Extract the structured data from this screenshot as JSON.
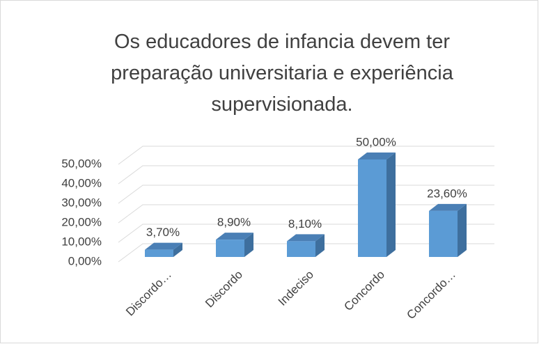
{
  "chart_data": {
    "type": "bar3d",
    "title": "Os educadores de infancia devem ter preparação universitaria e experiência supervisionada.",
    "categories": [
      "Discordo…",
      "Discordo",
      "Indeciso",
      "Concordo",
      "Concordo…"
    ],
    "values": [
      3.7,
      8.9,
      8.1,
      50,
      23.6
    ],
    "value_labels": [
      "3,70%",
      "8,90%",
      "8,10%",
      "50,00%",
      "23,60%"
    ],
    "color": "#5b9bd5",
    "ylim": [
      0,
      50
    ],
    "yticks": [
      {
        "value": 0,
        "label": "0,00%"
      },
      {
        "value": 10,
        "label": "10,00%"
      },
      {
        "value": 20,
        "label": "20,00%"
      },
      {
        "value": 30,
        "label": "30,00%"
      },
      {
        "value": 40,
        "label": "40,00%"
      },
      {
        "value": 50,
        "label": "50,00%"
      }
    ],
    "grid": true
  }
}
